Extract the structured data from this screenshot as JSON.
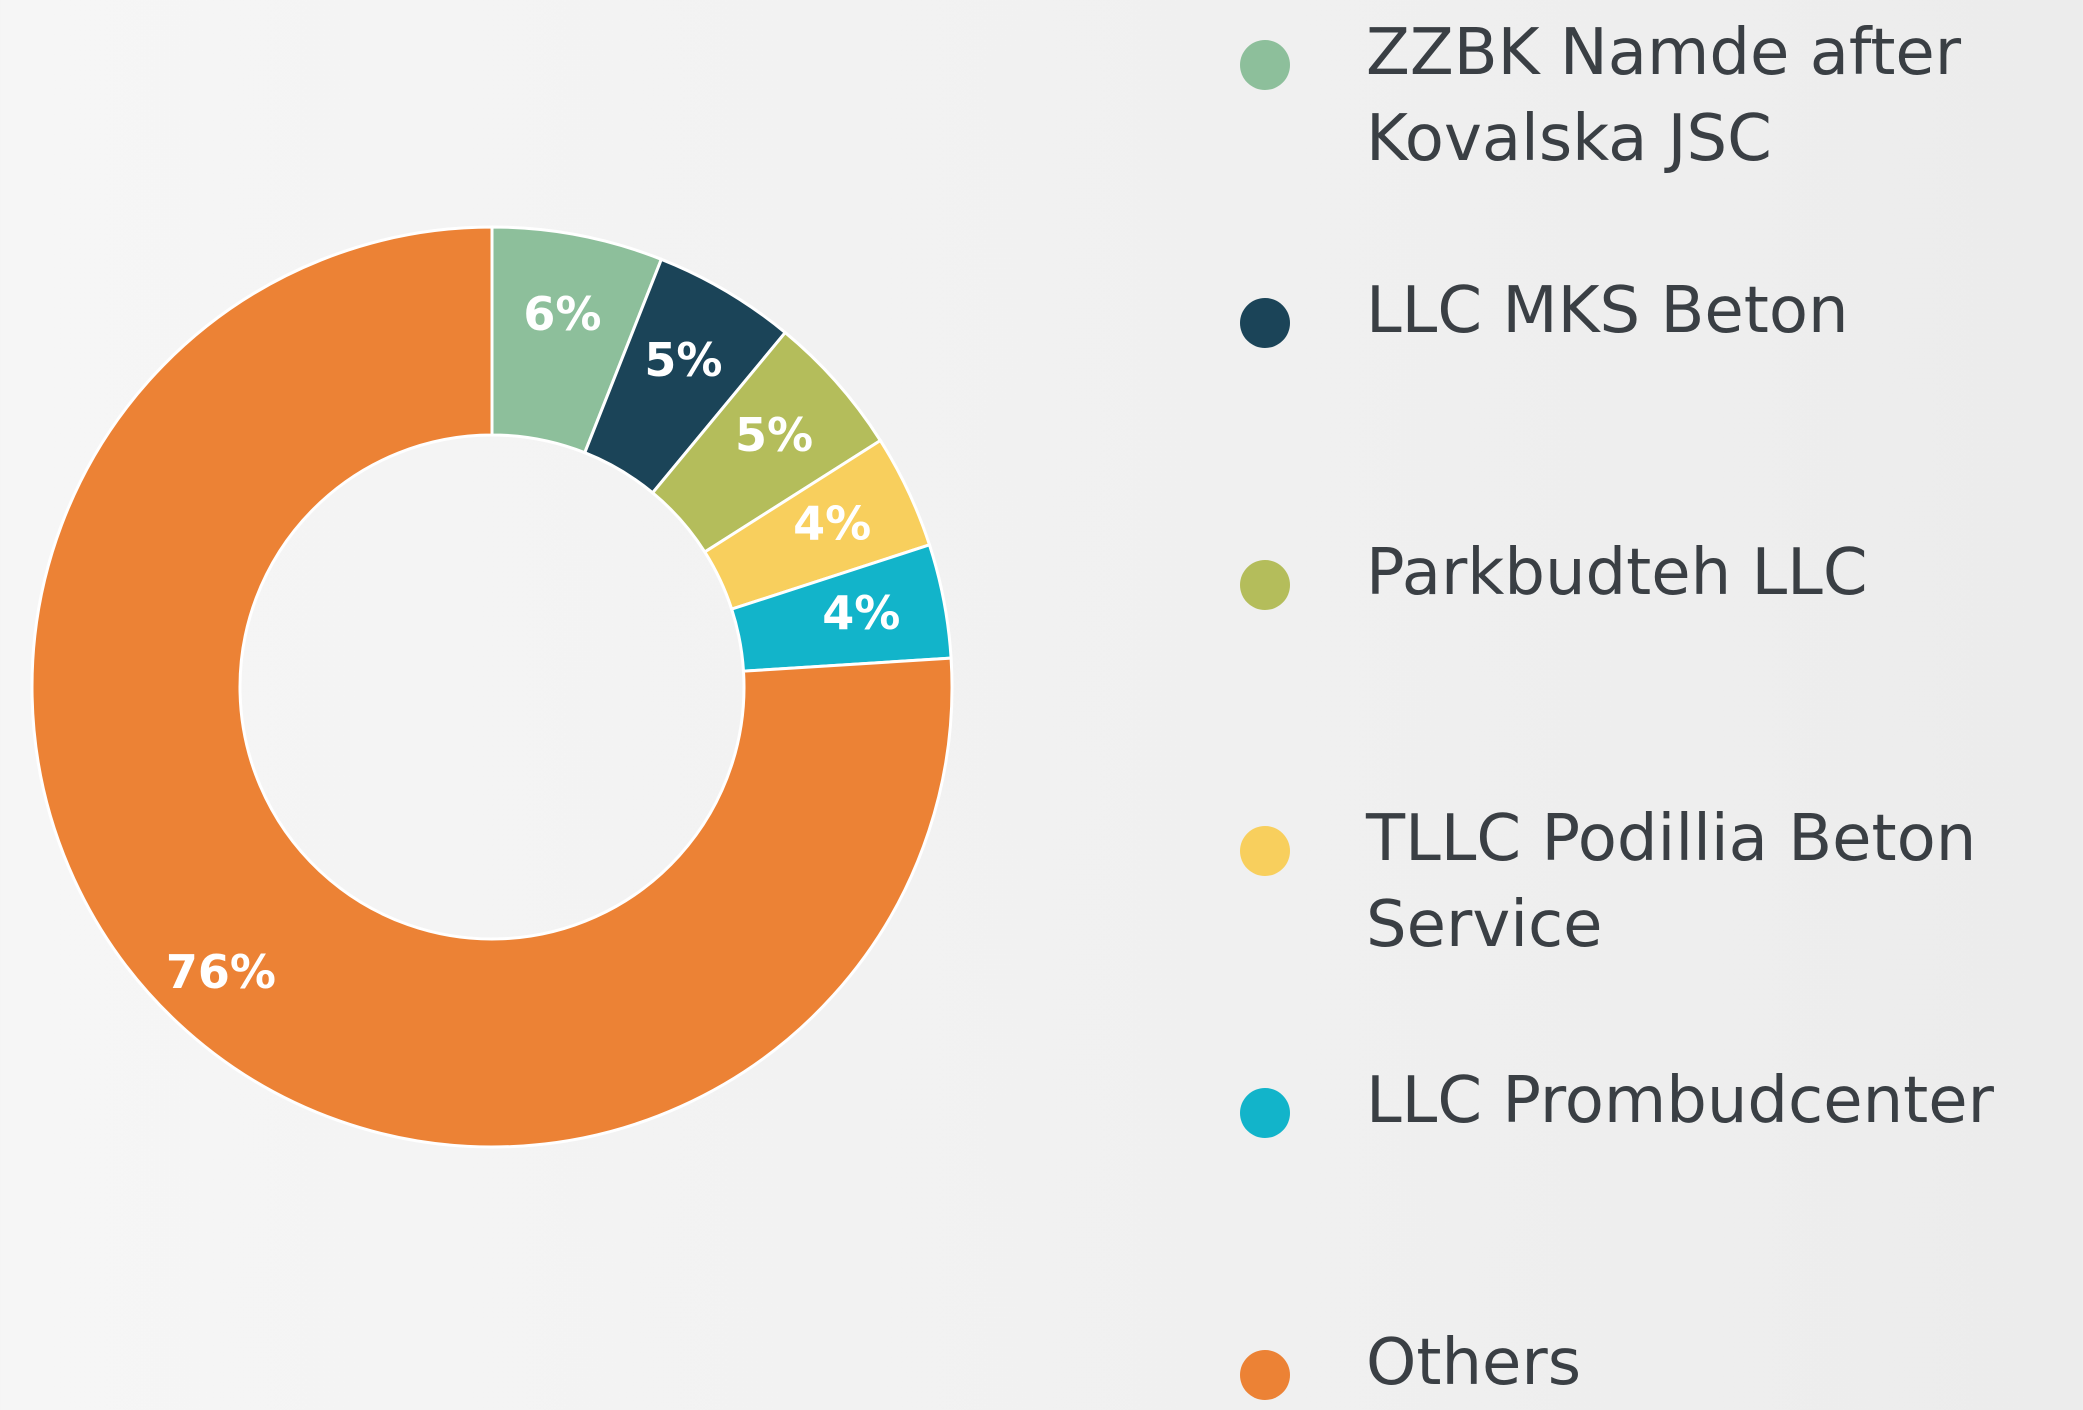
{
  "chart_data": {
    "type": "donut",
    "categories": [
      "ZZBK Namde after Kovalska JSC",
      "LLC MKS Beton",
      "Parkbudteh LLC",
      "TLLC Podillia Beton Service",
      "LLC Prombudcenter",
      "Others"
    ],
    "values": [
      6,
      5,
      5,
      4,
      4,
      76
    ],
    "value_labels": [
      "6%",
      "5%",
      "5%",
      "4%",
      "4%",
      "76%"
    ],
    "colors": [
      "#8dbf9b",
      "#1b4458",
      "#b4bd5b",
      "#f8cf5d",
      "#12b4ca",
      "#ec8235"
    ]
  }
}
